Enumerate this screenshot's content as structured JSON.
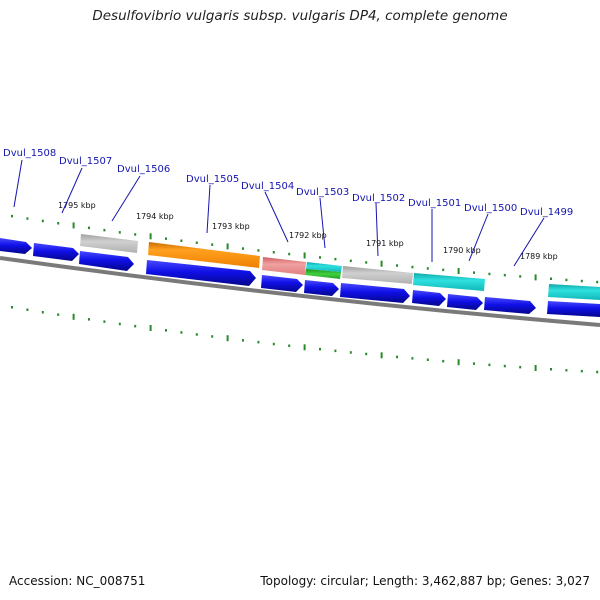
{
  "header": {
    "title": "Desulfovibrio vulgaris subsp. vulgaris DP4, complete genome"
  },
  "footer": {
    "accession": "Accession: NC_008751",
    "summary": "Topology: circular; Length: 3,462,887 bp; Genes: 3,027"
  },
  "map": {
    "kbp_markers": [
      {
        "label": "1795 kbp",
        "kbp": 1795
      },
      {
        "label": "1794 kbp",
        "kbp": 1794
      },
      {
        "label": "1793 kbp",
        "kbp": 1793
      },
      {
        "label": "1792 kbp",
        "kbp": 1792
      },
      {
        "label": "1791 kbp",
        "kbp": 1791
      },
      {
        "label": "1790 kbp",
        "kbp": 1790
      },
      {
        "label": "1789 kbp",
        "kbp": 1789
      }
    ],
    "gene_labels": [
      "Dvul_1508",
      "Dvul_1507",
      "Dvul_1506",
      "Dvul_1505",
      "Dvul_1504",
      "Dvul_1503",
      "Dvul_1502",
      "Dvul_1501",
      "Dvul_1500",
      "Dvul_1499"
    ],
    "colors": {
      "cds": "#1010e8",
      "backbone": "#808080",
      "ticks": "#2a8a2a",
      "orange_feature": "#f58a0a",
      "pink_feature": "#e88a8a",
      "cyan_feature": "#1ad0d0",
      "green_feature": "#30c030",
      "gray_feature": "#b8b8b8",
      "label_lines": "#1515b0"
    }
  }
}
